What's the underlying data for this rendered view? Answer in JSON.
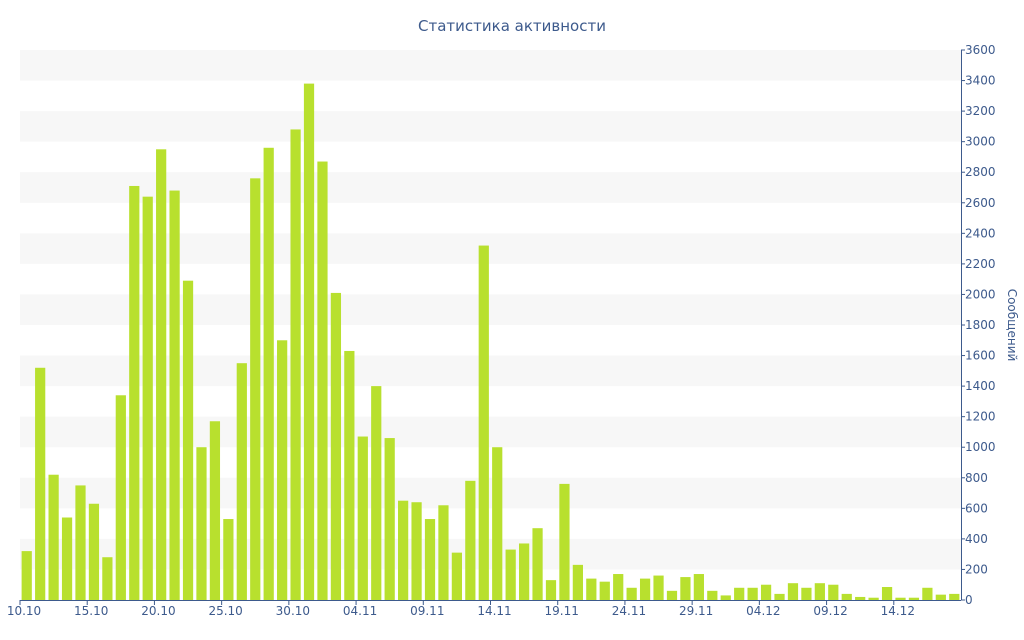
{
  "chart_data": {
    "type": "bar",
    "title": "Статистика активности",
    "ylabel": "Сообщений",
    "xlabel": "",
    "ylim": [
      0,
      3600
    ],
    "y_ticks": [
      0,
      200,
      400,
      600,
      800,
      1000,
      1200,
      1400,
      1600,
      1800,
      2000,
      2200,
      2400,
      2600,
      2800,
      3000,
      3200,
      3400,
      3600
    ],
    "y_axis_side": "right",
    "grid": "alternating horizontal bands",
    "x_tick_labels": [
      "10.10",
      "15.10",
      "20.10",
      "25.10",
      "30.10",
      "04.11",
      "09.11",
      "14.11",
      "19.11",
      "24.11",
      "29.11",
      "04.12",
      "09.12",
      "14.12"
    ],
    "x_tick_every": 5,
    "categories": [
      "10.10",
      "11.10",
      "12.10",
      "13.10",
      "14.10",
      "15.10",
      "16.10",
      "17.10",
      "18.10",
      "19.10",
      "20.10",
      "21.10",
      "22.10",
      "23.10",
      "24.10",
      "25.10",
      "26.10",
      "27.10",
      "28.10",
      "29.10",
      "30.10",
      "31.10",
      "01.11",
      "02.11",
      "03.11",
      "04.11",
      "05.11",
      "06.11",
      "07.11",
      "08.11",
      "09.11",
      "10.11",
      "11.11",
      "12.11",
      "13.11",
      "14.11",
      "15.11",
      "16.11",
      "17.11",
      "18.11",
      "19.11",
      "20.11",
      "21.11",
      "22.11",
      "23.11",
      "24.11",
      "25.11",
      "26.11",
      "27.11",
      "28.11",
      "29.11",
      "30.11",
      "01.12",
      "02.12",
      "03.12",
      "04.12",
      "05.12",
      "06.12",
      "07.12",
      "08.12",
      "09.12",
      "10.12",
      "11.12",
      "12.12",
      "13.12",
      "14.12",
      "15.12",
      "16.12",
      "17.12",
      "18.12"
    ],
    "values": [
      320,
      1520,
      820,
      540,
      750,
      630,
      280,
      1340,
      2710,
      2640,
      2950,
      2680,
      2090,
      1000,
      1170,
      530,
      1550,
      2760,
      2960,
      1700,
      3080,
      3380,
      2870,
      2010,
      1630,
      1070,
      1400,
      1060,
      650,
      640,
      530,
      620,
      310,
      780,
      2320,
      1000,
      330,
      370,
      470,
      130,
      760,
      230,
      140,
      120,
      170,
      80,
      140,
      160,
      60,
      150,
      170,
      60,
      30,
      80,
      80,
      100,
      40,
      110,
      80,
      110,
      100,
      40,
      20,
      15,
      85,
      15,
      15,
      80,
      35,
      40
    ],
    "colors": {
      "bar": "#b8e02e",
      "text": "#3d5a8c",
      "band": "#f7f7f7",
      "axis": "#3d5a8c"
    }
  }
}
